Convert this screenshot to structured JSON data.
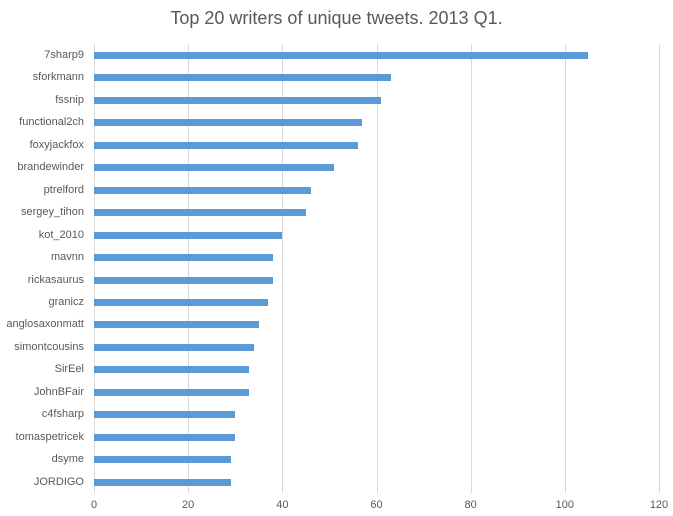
{
  "chart_data": {
    "type": "bar",
    "orientation": "horizontal",
    "title": "Top 20 writers of unique tweets. 2013 Q1.",
    "xlabel": "",
    "ylabel": "",
    "xlim": [
      0,
      120
    ],
    "x_ticks": [
      "0",
      "20",
      "40",
      "60",
      "80",
      "100",
      "120"
    ],
    "grid": true,
    "legend": null,
    "bar_color": "#5b9bd5",
    "categories": [
      "7sharp9",
      "sforkmann",
      "fssnip",
      "functional2ch",
      "foxyjackfox",
      "brandewinder",
      "ptrelford",
      "sergey_tihon",
      "kot_2010",
      "mavnn",
      "rickasaurus",
      "granicz",
      "anglosaxonmatt",
      "simontcousins",
      "SirEel",
      "JohnBFair",
      "c4fsharp",
      "tomaspetricek",
      "dsyme",
      "JORDIGO"
    ],
    "values": [
      105,
      63,
      61,
      57,
      56,
      51,
      46,
      45,
      40,
      38,
      38,
      37,
      35,
      34,
      33,
      33,
      30,
      30,
      29,
      29
    ]
  }
}
